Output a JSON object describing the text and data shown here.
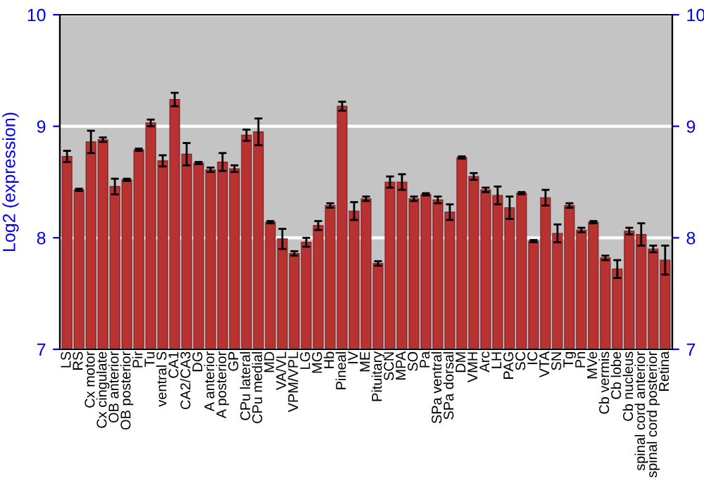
{
  "chart_data": {
    "type": "bar",
    "ylabel": "Log2 (expression)",
    "categories": [
      "LS",
      "RS",
      "Cx motor",
      "Cx cingulate",
      "OB anterior",
      "OB posterior",
      "Pir",
      "Tu",
      "ventral S",
      "CA1",
      "CA2/CA3",
      "DG",
      "A anterior",
      "A posterior",
      "GP",
      "CPu lateral",
      "CPu medial",
      "MD",
      "VA/VL",
      "VPM/VPL",
      "LG",
      "MG",
      "Hb",
      "Pineal",
      "IV",
      "ME",
      "Pituitary",
      "SCN",
      "MPA",
      "SO",
      "Pa",
      "SPa ventral",
      "SPa dorsal",
      "DM",
      "VMH",
      "Arc",
      "LH",
      "PAG",
      "SC",
      "IC",
      "VTA",
      "SN",
      "Tg",
      "Pn",
      "MVe",
      "Cb vermis",
      "Cb lobe",
      "Cb nucleus",
      "spinal cord anterior",
      "spinal cord posterior",
      "Retina"
    ],
    "values": [
      8.73,
      8.43,
      8.86,
      8.88,
      8.46,
      8.52,
      8.79,
      9.03,
      8.69,
      9.24,
      8.75,
      8.67,
      8.61,
      8.68,
      8.62,
      8.92,
      8.95,
      8.14,
      7.99,
      7.86,
      7.96,
      8.11,
      8.29,
      9.18,
      8.24,
      8.35,
      7.77,
      8.5,
      8.5,
      8.35,
      8.39,
      8.34,
      8.23,
      8.72,
      8.55,
      8.43,
      8.38,
      8.27,
      8.4,
      7.97,
      8.36,
      8.04,
      8.29,
      8.07,
      8.14,
      7.82,
      7.72,
      8.06,
      8.03,
      7.9,
      7.8
    ],
    "errors": [
      0.05,
      0.01,
      0.1,
      0.02,
      0.07,
      0.01,
      0.01,
      0.03,
      0.05,
      0.06,
      0.1,
      0.01,
      0.02,
      0.08,
      0.03,
      0.05,
      0.12,
      0.01,
      0.09,
      0.02,
      0.04,
      0.04,
      0.02,
      0.04,
      0.08,
      0.02,
      0.02,
      0.05,
      0.07,
      0.02,
      0.01,
      0.03,
      0.07,
      0.01,
      0.03,
      0.02,
      0.08,
      0.1,
      0.01,
      0.01,
      0.07,
      0.08,
      0.02,
      0.02,
      0.01,
      0.02,
      0.08,
      0.03,
      0.1,
      0.03,
      0.13
    ],
    "color": "#b83232",
    "ylim": [
      7,
      10
    ],
    "yticks": [
      7,
      8,
      9,
      10
    ],
    "y2lim": [
      7,
      10
    ],
    "y2ticks": [
      7,
      8,
      9,
      10
    ],
    "grid": "y"
  }
}
